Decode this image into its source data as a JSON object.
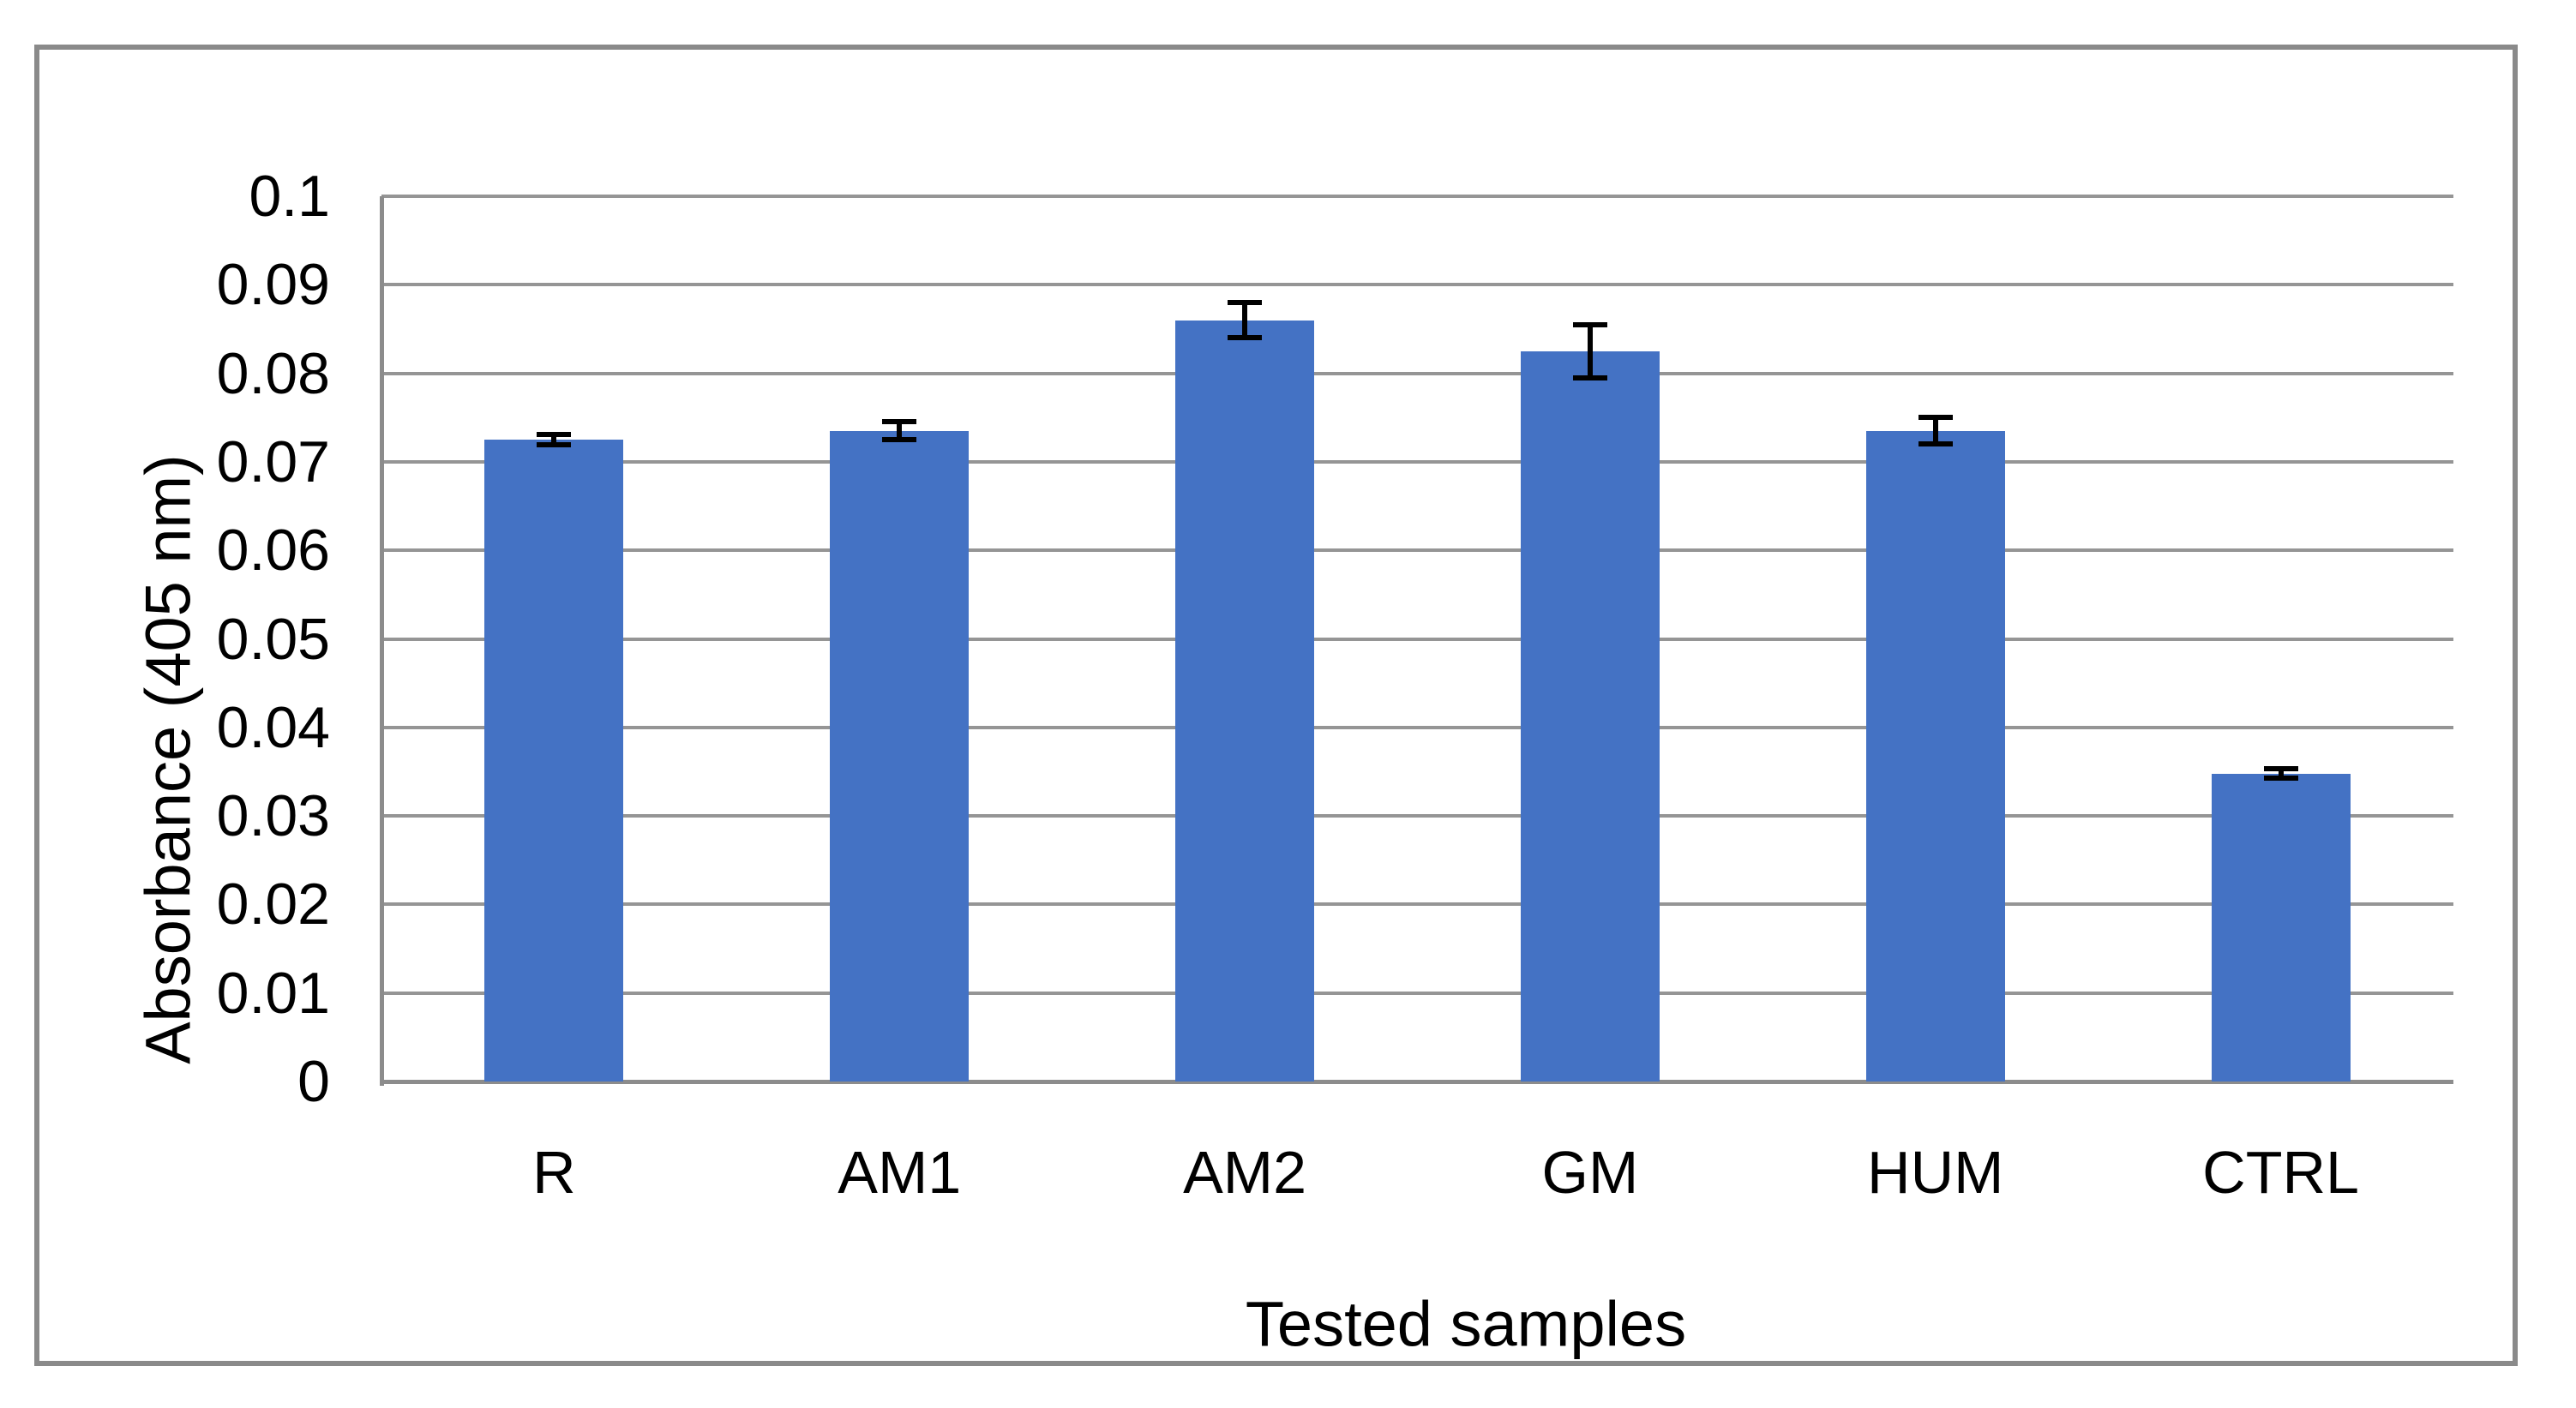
{
  "chart_data": {
    "type": "bar",
    "title": "",
    "xlabel": "Tested samples",
    "ylabel": "Absorbance (405 nm)",
    "categories": [
      "R",
      "AM1",
      "AM2",
      "GM",
      "HUM",
      "CTRL"
    ],
    "values": [
      0.0725,
      0.0735,
      0.086,
      0.0825,
      0.0735,
      0.0348
    ],
    "error_bars": [
      0.0006,
      0.001,
      0.002,
      0.003,
      0.0015,
      0.0005
    ],
    "ylim": [
      0,
      0.1
    ],
    "ytick_step": 0.01,
    "ytick_labels": [
      "0",
      "0.01",
      "0.02",
      "0.03",
      "0.04",
      "0.05",
      "0.06",
      "0.07",
      "0.08",
      "0.09",
      "0.1"
    ],
    "grid": true,
    "legend": false,
    "series_count": 1,
    "bar_color": "#4472C4",
    "gridline_color": "#959595",
    "axis_color": "#8C8C8C",
    "frame_border_color": "#8A8A8A",
    "error_bar_color": "#000000",
    "text_color": "#000000",
    "background": "#FFFFFF"
  }
}
